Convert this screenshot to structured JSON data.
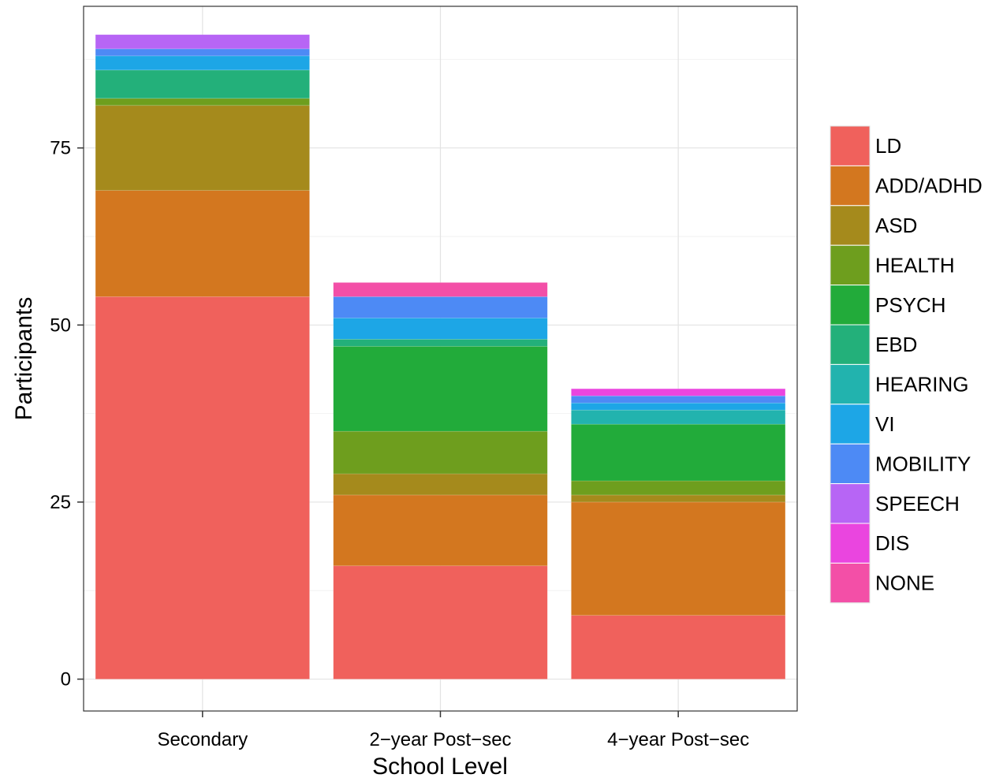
{
  "chart_data": {
    "type": "bar",
    "stacked": true,
    "xlabel": "School Level",
    "ylabel": "Participants",
    "categories": [
      "Secondary",
      "2−year Post−sec",
      "4−year Post−sec"
    ],
    "yticks": [
      0,
      25,
      50,
      75
    ],
    "ylim": [
      -4.5,
      95
    ],
    "grid": true,
    "legend_position": "right",
    "series": [
      {
        "name": "LD",
        "color": "#F0615C",
        "values": [
          54,
          16,
          9
        ]
      },
      {
        "name": "ADD/ADHD",
        "color": "#D3771F",
        "values": [
          15,
          10,
          16
        ]
      },
      {
        "name": "ASD",
        "color": "#A58A1C",
        "values": [
          12,
          3,
          1
        ]
      },
      {
        "name": "HEALTH",
        "color": "#6E9E1E",
        "values": [
          1,
          6,
          2
        ]
      },
      {
        "name": "PSYCH",
        "color": "#22AB3A",
        "values": [
          0,
          12,
          8
        ]
      },
      {
        "name": "EBD",
        "color": "#23B07A",
        "values": [
          4,
          1,
          0
        ]
      },
      {
        "name": "HEARING",
        "color": "#22B3AE",
        "values": [
          0,
          0,
          2
        ]
      },
      {
        "name": "VI",
        "color": "#1DA6E6",
        "values": [
          2,
          3,
          1
        ]
      },
      {
        "name": "MOBILITY",
        "color": "#4D8AF5",
        "values": [
          1,
          3,
          1
        ]
      },
      {
        "name": "SPEECH",
        "color": "#B765F5",
        "values": [
          2,
          0,
          0
        ]
      },
      {
        "name": "DIS",
        "color": "#EA45DF",
        "values": [
          0,
          0,
          1
        ]
      },
      {
        "name": "NONE",
        "color": "#F34FA7",
        "values": [
          0,
          2,
          0
        ]
      }
    ]
  }
}
